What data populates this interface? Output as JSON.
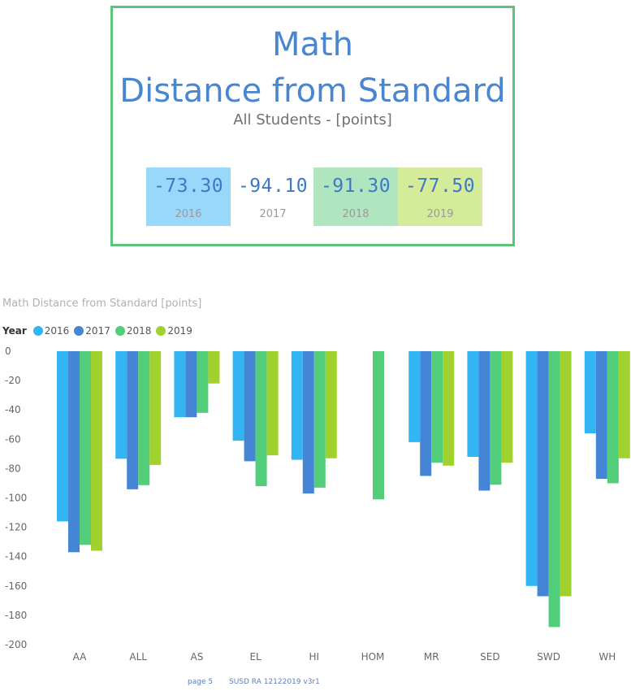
{
  "card": {
    "title_line1": "Math",
    "title_line2": "Distance from Standard",
    "subtitle": "All Students - [points]",
    "kpis": [
      {
        "value": "-73.30",
        "year": "2016",
        "bg": "#99d8fa"
      },
      {
        "value": "-94.10",
        "year": "2017",
        "bg": "#ffffff"
      },
      {
        "value": "-91.30",
        "year": "2018",
        "bg": "#afe6bf"
      },
      {
        "value": "-77.50",
        "year": "2019",
        "bg": "#d4eb9a"
      }
    ]
  },
  "chart_data": {
    "type": "bar",
    "title": "Math Distance from Standard [points]",
    "legend_title": "Year",
    "legend_position": "top-left",
    "categories": [
      "AA",
      "ALL",
      "AS",
      "EL",
      "HI",
      "HOM",
      "MR",
      "SED",
      "SWD",
      "WH"
    ],
    "series": [
      {
        "name": "2016",
        "color": "#33b5f3",
        "values": [
          -116,
          -73.3,
          -45,
          -61,
          -74,
          null,
          -62,
          -72,
          -160,
          -56
        ]
      },
      {
        "name": "2017",
        "color": "#4485d6",
        "values": [
          -137,
          -94.1,
          -45,
          -75,
          -97,
          null,
          -85,
          -95,
          -167,
          -87
        ]
      },
      {
        "name": "2018",
        "color": "#52cd79",
        "values": [
          -132,
          -91.3,
          -42,
          -92,
          -93,
          -101,
          -76,
          -91,
          -188,
          -90
        ]
      },
      {
        "name": "2019",
        "color": "#a1d12e",
        "values": [
          -136,
          -77.5,
          -22,
          -71,
          -73,
          null,
          -78,
          -76,
          -167,
          -73
        ]
      }
    ],
    "yticks": [
      0,
      -20,
      -40,
      -60,
      -80,
      -100,
      -120,
      -140,
      -160,
      -180,
      -200
    ],
    "ylim": [
      -200,
      0
    ],
    "grid": false
  },
  "footer": {
    "page": "page 5",
    "version": "SUSD RA 12122019 v3r1"
  }
}
